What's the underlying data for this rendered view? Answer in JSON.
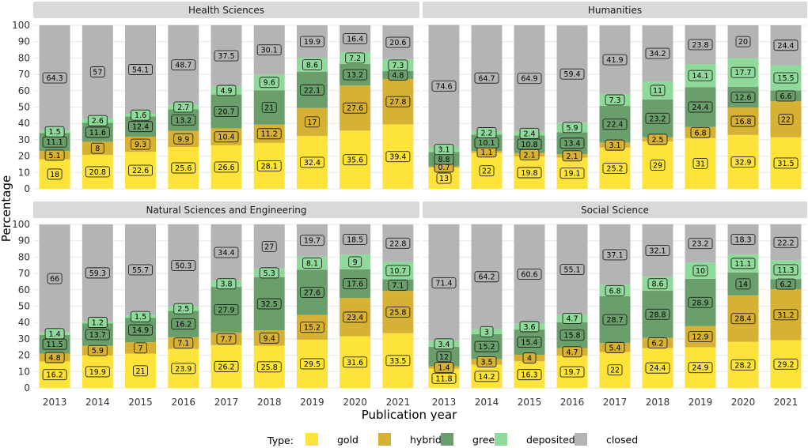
{
  "chart_data": {
    "type": "bar",
    "stacked": true,
    "xlabel": "Publication year",
    "ylabel": "Percentage",
    "ylim": [
      0,
      100
    ],
    "yticks": [
      0,
      10,
      20,
      30,
      40,
      50,
      60,
      70,
      80,
      90,
      100
    ],
    "categories": [
      "2013",
      "2014",
      "2015",
      "2016",
      "2017",
      "2018",
      "2019",
      "2020",
      "2021"
    ],
    "legend": {
      "title": "Type:",
      "position": "bottom",
      "items": [
        "gold",
        "hybrid",
        "green",
        "deposited",
        "closed"
      ]
    },
    "colors": {
      "gold": "#fde33a",
      "hybrid": "#d6b134",
      "green": "#6a9e6a",
      "deposited": "#8fd99a",
      "closed": "#b4b4b4",
      "strip": "#d9d9d9",
      "grid": "#e8e8e8"
    },
    "panels": [
      {
        "title": "Health Sciences",
        "series": {
          "gold": [
            18,
            20.8,
            22.6,
            25.6,
            26.6,
            28.1,
            32.4,
            35.6,
            39.4
          ],
          "hybrid": [
            5.1,
            8,
            9.3,
            9.9,
            10.4,
            11.2,
            17,
            27.6,
            27.8
          ],
          "green": [
            11.1,
            11.6,
            12.4,
            13.2,
            20.7,
            21,
            22.1,
            13.2,
            4.8
          ],
          "deposited": [
            1.5,
            2.6,
            1.6,
            2.7,
            4.9,
            9.6,
            8.6,
            7.2,
            7.3
          ],
          "closed": [
            64.3,
            57,
            54.1,
            48.7,
            37.5,
            30.1,
            19.9,
            16.4,
            20.6
          ]
        }
      },
      {
        "title": "Humanities",
        "series": {
          "gold": [
            13,
            22,
            19.8,
            19.1,
            25.2,
            29,
            31,
            32.9,
            31.5
          ],
          "hybrid": [
            0.7,
            1.1,
            2.1,
            2.1,
            3.1,
            2.5,
            6.8,
            16.8,
            22
          ],
          "green": [
            8.8,
            10.1,
            10.8,
            13.4,
            22.4,
            23.2,
            24.4,
            12.6,
            6.6
          ],
          "deposited": [
            3.1,
            2.2,
            2.4,
            5.9,
            7.3,
            11,
            14.1,
            17.7,
            15.5
          ],
          "closed": [
            74.6,
            64.7,
            64.9,
            59.4,
            41.9,
            34.2,
            23.8,
            20,
            24.4
          ]
        }
      },
      {
        "title": "Natural Sciences and Engineering",
        "series": {
          "gold": [
            16.2,
            19.9,
            21,
            23.9,
            26.2,
            25.8,
            29.5,
            31.6,
            33.5
          ],
          "hybrid": [
            4.8,
            5.9,
            7,
            7.1,
            7.7,
            9.4,
            15.2,
            23.4,
            25.8
          ],
          "green": [
            11.5,
            13.7,
            14.9,
            16.2,
            27.9,
            32.5,
            27.6,
            17.6,
            7.1
          ],
          "deposited": [
            1.4,
            1.2,
            1.5,
            2.5,
            3.8,
            5.3,
            8.1,
            9,
            10.7
          ],
          "closed": [
            66,
            59.3,
            55.7,
            50.3,
            34.4,
            27,
            19.7,
            18.5,
            22.8
          ]
        }
      },
      {
        "title": "Social Science",
        "series": {
          "gold": [
            11.8,
            14.2,
            16.3,
            19.7,
            22,
            24.4,
            24.9,
            28.2,
            29.2
          ],
          "hybrid": [
            1.4,
            3.5,
            4,
            4.7,
            5.4,
            6.2,
            12.9,
            28.4,
            31.2
          ],
          "green": [
            12,
            15.2,
            15.4,
            15.8,
            28.7,
            28.8,
            28.9,
            14,
            6.2
          ],
          "deposited": [
            3.4,
            3,
            3.6,
            4.7,
            6.8,
            8.6,
            10,
            11.1,
            11.3
          ],
          "closed": [
            71.4,
            64.2,
            60.6,
            55.1,
            37.1,
            32.1,
            23.2,
            18.3,
            22.2
          ]
        }
      }
    ]
  }
}
